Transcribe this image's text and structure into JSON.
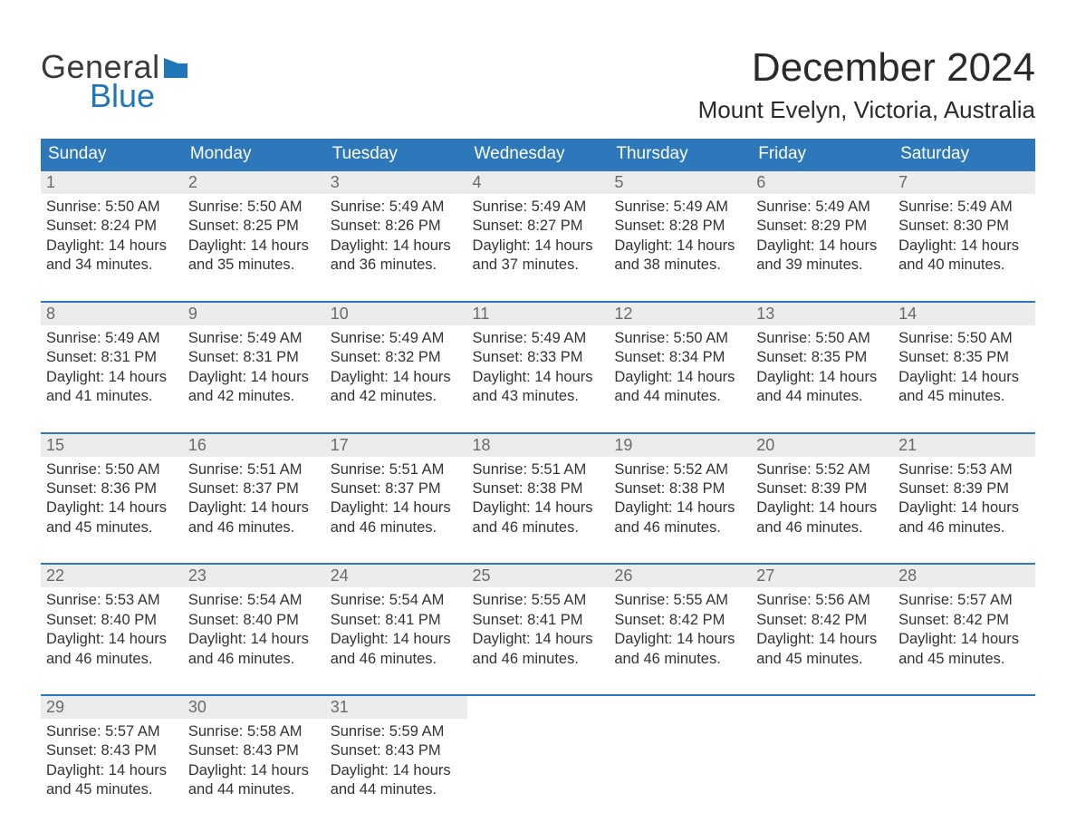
{
  "logo": {
    "line1": "General",
    "line2": "Blue",
    "flag_color": "#1f77b8"
  },
  "title": "December 2024",
  "location": "Mount Evelyn, Victoria, Australia",
  "colors": {
    "header_bg": "#2d78bb",
    "header_text": "#ffffff",
    "daynum_bg": "#ececec",
    "daynum_text": "#6a6a6a",
    "body_text": "#333333",
    "rule": "#2d78bb",
    "page_bg": "#ffffff"
  },
  "typography": {
    "title_fontsize": 44,
    "location_fontsize": 26,
    "dayheader_fontsize": 19,
    "daynum_fontsize": 18,
    "detail_fontsize": 16.5,
    "logo_fontsize": 36
  },
  "day_headers": [
    "Sunday",
    "Monday",
    "Tuesday",
    "Wednesday",
    "Thursday",
    "Friday",
    "Saturday"
  ],
  "weeks": [
    [
      {
        "n": "1",
        "sunrise": "5:50 AM",
        "sunset": "8:24 PM",
        "dl1": "14 hours",
        "dl2": "34 minutes."
      },
      {
        "n": "2",
        "sunrise": "5:50 AM",
        "sunset": "8:25 PM",
        "dl1": "14 hours",
        "dl2": "35 minutes."
      },
      {
        "n": "3",
        "sunrise": "5:49 AM",
        "sunset": "8:26 PM",
        "dl1": "14 hours",
        "dl2": "36 minutes."
      },
      {
        "n": "4",
        "sunrise": "5:49 AM",
        "sunset": "8:27 PM",
        "dl1": "14 hours",
        "dl2": "37 minutes."
      },
      {
        "n": "5",
        "sunrise": "5:49 AM",
        "sunset": "8:28 PM",
        "dl1": "14 hours",
        "dl2": "38 minutes."
      },
      {
        "n": "6",
        "sunrise": "5:49 AM",
        "sunset": "8:29 PM",
        "dl1": "14 hours",
        "dl2": "39 minutes."
      },
      {
        "n": "7",
        "sunrise": "5:49 AM",
        "sunset": "8:30 PM",
        "dl1": "14 hours",
        "dl2": "40 minutes."
      }
    ],
    [
      {
        "n": "8",
        "sunrise": "5:49 AM",
        "sunset": "8:31 PM",
        "dl1": "14 hours",
        "dl2": "41 minutes."
      },
      {
        "n": "9",
        "sunrise": "5:49 AM",
        "sunset": "8:31 PM",
        "dl1": "14 hours",
        "dl2": "42 minutes."
      },
      {
        "n": "10",
        "sunrise": "5:49 AM",
        "sunset": "8:32 PM",
        "dl1": "14 hours",
        "dl2": "42 minutes."
      },
      {
        "n": "11",
        "sunrise": "5:49 AM",
        "sunset": "8:33 PM",
        "dl1": "14 hours",
        "dl2": "43 minutes."
      },
      {
        "n": "12",
        "sunrise": "5:50 AM",
        "sunset": "8:34 PM",
        "dl1": "14 hours",
        "dl2": "44 minutes."
      },
      {
        "n": "13",
        "sunrise": "5:50 AM",
        "sunset": "8:35 PM",
        "dl1": "14 hours",
        "dl2": "44 minutes."
      },
      {
        "n": "14",
        "sunrise": "5:50 AM",
        "sunset": "8:35 PM",
        "dl1": "14 hours",
        "dl2": "45 minutes."
      }
    ],
    [
      {
        "n": "15",
        "sunrise": "5:50 AM",
        "sunset": "8:36 PM",
        "dl1": "14 hours",
        "dl2": "45 minutes."
      },
      {
        "n": "16",
        "sunrise": "5:51 AM",
        "sunset": "8:37 PM",
        "dl1": "14 hours",
        "dl2": "46 minutes."
      },
      {
        "n": "17",
        "sunrise": "5:51 AM",
        "sunset": "8:37 PM",
        "dl1": "14 hours",
        "dl2": "46 minutes."
      },
      {
        "n": "18",
        "sunrise": "5:51 AM",
        "sunset": "8:38 PM",
        "dl1": "14 hours",
        "dl2": "46 minutes."
      },
      {
        "n": "19",
        "sunrise": "5:52 AM",
        "sunset": "8:38 PM",
        "dl1": "14 hours",
        "dl2": "46 minutes."
      },
      {
        "n": "20",
        "sunrise": "5:52 AM",
        "sunset": "8:39 PM",
        "dl1": "14 hours",
        "dl2": "46 minutes."
      },
      {
        "n": "21",
        "sunrise": "5:53 AM",
        "sunset": "8:39 PM",
        "dl1": "14 hours",
        "dl2": "46 minutes."
      }
    ],
    [
      {
        "n": "22",
        "sunrise": "5:53 AM",
        "sunset": "8:40 PM",
        "dl1": "14 hours",
        "dl2": "46 minutes."
      },
      {
        "n": "23",
        "sunrise": "5:54 AM",
        "sunset": "8:40 PM",
        "dl1": "14 hours",
        "dl2": "46 minutes."
      },
      {
        "n": "24",
        "sunrise": "5:54 AM",
        "sunset": "8:41 PM",
        "dl1": "14 hours",
        "dl2": "46 minutes."
      },
      {
        "n": "25",
        "sunrise": "5:55 AM",
        "sunset": "8:41 PM",
        "dl1": "14 hours",
        "dl2": "46 minutes."
      },
      {
        "n": "26",
        "sunrise": "5:55 AM",
        "sunset": "8:42 PM",
        "dl1": "14 hours",
        "dl2": "46 minutes."
      },
      {
        "n": "27",
        "sunrise": "5:56 AM",
        "sunset": "8:42 PM",
        "dl1": "14 hours",
        "dl2": "45 minutes."
      },
      {
        "n": "28",
        "sunrise": "5:57 AM",
        "sunset": "8:42 PM",
        "dl1": "14 hours",
        "dl2": "45 minutes."
      }
    ],
    [
      {
        "n": "29",
        "sunrise": "5:57 AM",
        "sunset": "8:43 PM",
        "dl1": "14 hours",
        "dl2": "45 minutes."
      },
      {
        "n": "30",
        "sunrise": "5:58 AM",
        "sunset": "8:43 PM",
        "dl1": "14 hours",
        "dl2": "44 minutes."
      },
      {
        "n": "31",
        "sunrise": "5:59 AM",
        "sunset": "8:43 PM",
        "dl1": "14 hours",
        "dl2": "44 minutes."
      },
      null,
      null,
      null,
      null
    ]
  ],
  "labels": {
    "sunrise_prefix": "Sunrise: ",
    "sunset_prefix": "Sunset: ",
    "daylight_prefix": "Daylight: ",
    "and_word": "and "
  }
}
